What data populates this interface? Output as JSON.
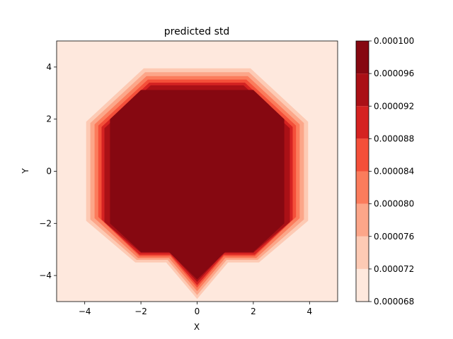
{
  "chart_data": {
    "type": "heatmap",
    "subtype": "filled-contour",
    "title": "predicted std",
    "xlabel": "X",
    "ylabel": "Y",
    "xlim": [
      -5,
      5
    ],
    "ylim": [
      -5,
      5
    ],
    "xticks": [
      -4,
      -2,
      0,
      2,
      4
    ],
    "yticks": [
      -4,
      -2,
      0,
      2,
      4
    ],
    "xtick_labels": [
      "−4",
      "−2",
      "0",
      "2",
      "4"
    ],
    "ytick_labels": [
      "−4",
      "−2",
      "0",
      "2",
      "4"
    ],
    "grid": false,
    "colormap": "Reds",
    "colorbar": {
      "levels": [
        6.8e-05,
        7.2e-05,
        7.6e-05,
        8e-05,
        8.4e-05,
        8.8e-05,
        9.2e-05,
        9.6e-05,
        0.0001
      ],
      "tick_labels": [
        "0.000068",
        "0.000072",
        "0.000076",
        "0.000080",
        "0.000084",
        "0.000088",
        "0.000092",
        "0.000096",
        "0.000100"
      ],
      "band_colors": [
        "#fee8dd",
        "#fdcab4",
        "#fca689",
        "#fb7c5c",
        "#f44f39",
        "#d52221",
        "#aa1016",
        "#860811"
      ]
    },
    "background_value_band": [
      6.8e-05,
      7.2e-05
    ],
    "contour_polygons": [
      {
        "level": 7.2e-05,
        "points": [
          [
            -1.9,
            3.95
          ],
          [
            1.9,
            3.95
          ],
          [
            3.95,
            1.9
          ],
          [
            3.95,
            -1.9
          ],
          [
            2.2,
            -3.5
          ],
          [
            1.1,
            -3.5
          ],
          [
            0,
            -4.9
          ],
          [
            -1.1,
            -3.5
          ],
          [
            -2.2,
            -3.5
          ],
          [
            -3.95,
            -1.9
          ],
          [
            -3.95,
            1.9
          ]
        ]
      },
      {
        "level": 7.6e-05,
        "points": [
          [
            -1.85,
            3.8
          ],
          [
            1.85,
            3.8
          ],
          [
            3.8,
            1.85
          ],
          [
            3.8,
            -1.85
          ],
          [
            2.15,
            -3.4
          ],
          [
            1.05,
            -3.4
          ],
          [
            0,
            -4.75
          ],
          [
            -1.05,
            -3.4
          ],
          [
            -2.15,
            -3.4
          ],
          [
            -3.8,
            -1.85
          ],
          [
            -3.8,
            1.85
          ]
        ]
      },
      {
        "level": 8e-05,
        "points": [
          [
            -1.8,
            3.65
          ],
          [
            1.8,
            3.65
          ],
          [
            3.65,
            1.8
          ],
          [
            3.65,
            -1.8
          ],
          [
            2.1,
            -3.33
          ],
          [
            1,
            -3.33
          ],
          [
            0,
            -4.6
          ],
          [
            -1,
            -3.33
          ],
          [
            -2.1,
            -3.33
          ],
          [
            -3.65,
            -1.8
          ],
          [
            -3.65,
            1.8
          ]
        ]
      },
      {
        "level": 8.4e-05,
        "points": [
          [
            -1.75,
            3.52
          ],
          [
            1.75,
            3.52
          ],
          [
            3.52,
            1.75
          ],
          [
            3.52,
            -1.75
          ],
          [
            2.05,
            -3.26
          ],
          [
            0.95,
            -3.26
          ],
          [
            0,
            -4.47
          ],
          [
            -0.95,
            -3.26
          ],
          [
            -2.05,
            -3.26
          ],
          [
            -3.52,
            -1.75
          ],
          [
            -3.52,
            1.75
          ]
        ]
      },
      {
        "level": 8.8e-05,
        "points": [
          [
            -1.7,
            3.4
          ],
          [
            1.7,
            3.4
          ],
          [
            3.4,
            1.7
          ],
          [
            3.4,
            -1.85
          ],
          [
            2.05,
            -3.2
          ],
          [
            0.95,
            -3.2
          ],
          [
            0,
            -4.37
          ],
          [
            -0.95,
            -3.2
          ],
          [
            -2.05,
            -3.2
          ],
          [
            -3.4,
            -1.85
          ],
          [
            -3.4,
            1.7
          ]
        ]
      },
      {
        "level": 9.2e-05,
        "points": [
          [
            -1.65,
            3.3
          ],
          [
            1.65,
            3.3
          ],
          [
            3.3,
            1.65
          ],
          [
            3.3,
            -1.95
          ],
          [
            2,
            -3.13
          ],
          [
            0.95,
            -3.13
          ],
          [
            0,
            -4.25
          ],
          [
            -0.95,
            -3.13
          ],
          [
            -2,
            -3.13
          ],
          [
            -3.3,
            -1.95
          ],
          [
            -3.3,
            1.65
          ]
        ]
      },
      {
        "level": 9.6e-05,
        "points": [
          [
            -2,
            3.12
          ],
          [
            2,
            3.12
          ],
          [
            3.1,
            2
          ],
          [
            3.1,
            -2
          ],
          [
            2,
            -3.1
          ],
          [
            1,
            -3.1
          ],
          [
            0,
            -4.15
          ],
          [
            -1,
            -3.1
          ],
          [
            -2,
            -3.1
          ],
          [
            -3.1,
            -2
          ],
          [
            -3.1,
            2
          ]
        ]
      }
    ]
  }
}
